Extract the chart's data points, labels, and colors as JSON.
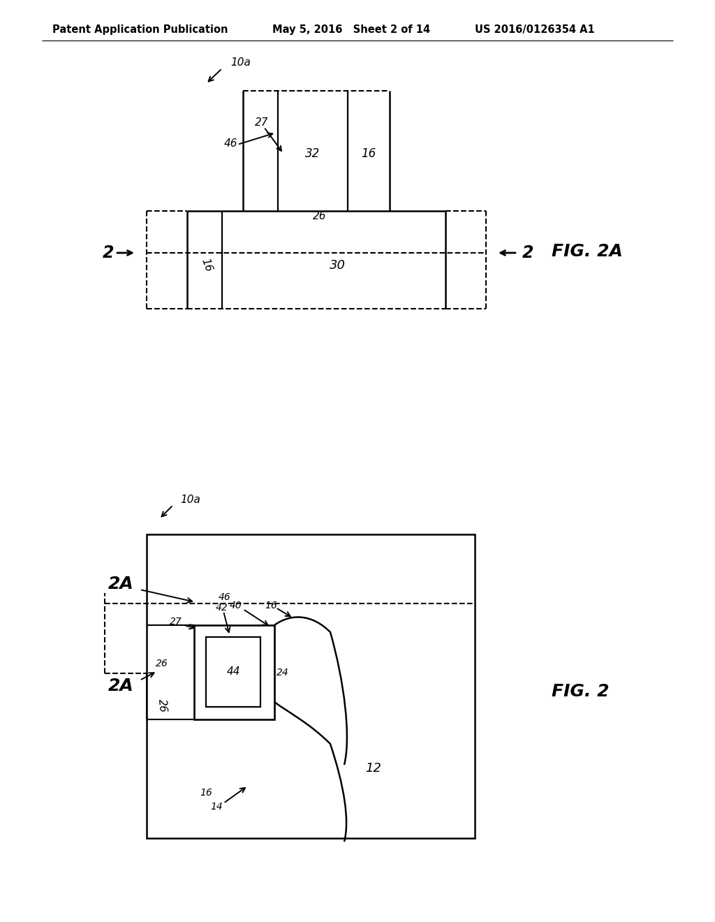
{
  "bg_color": "#ffffff",
  "line_color": "#000000",
  "header_left": "Patent Application Publication",
  "header_mid": "May 5, 2016   Sheet 2 of 14",
  "header_right": "US 2016/0126354 A1"
}
